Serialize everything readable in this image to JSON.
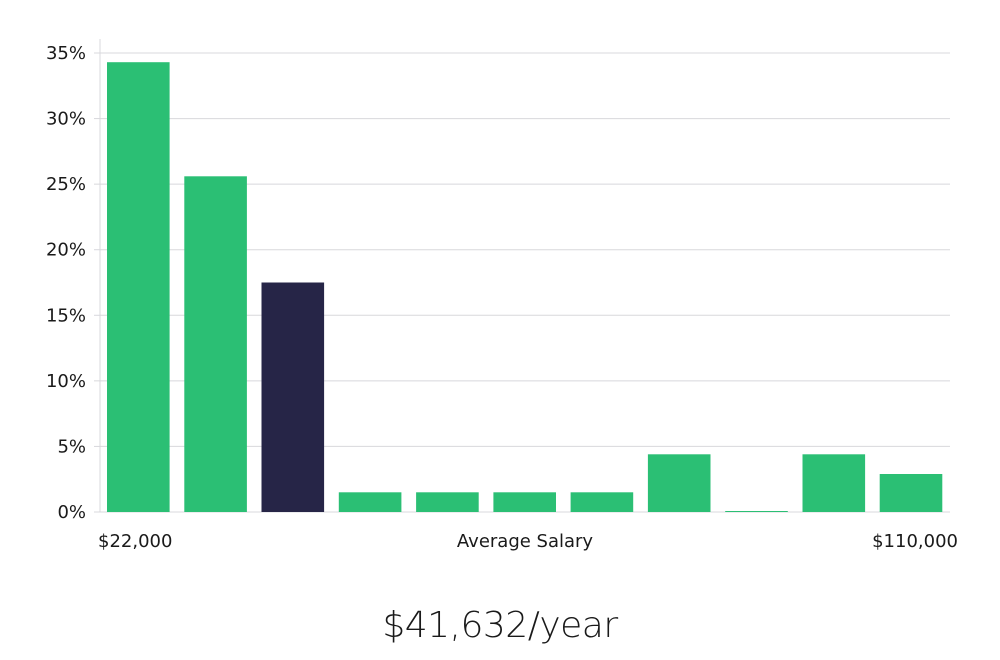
{
  "chart_data": {
    "type": "bar",
    "categories": [
      "1",
      "2",
      "3",
      "4",
      "5",
      "6",
      "7",
      "8",
      "9",
      "10",
      "11"
    ],
    "values": [
      34.3,
      25.6,
      17.5,
      1.5,
      1.5,
      1.5,
      1.5,
      4.4,
      0.05,
      4.4,
      2.9
    ],
    "highlight_index": 2,
    "ylim": [
      0,
      35
    ],
    "yticks": [
      0,
      5,
      10,
      15,
      20,
      25,
      30,
      35
    ],
    "ytick_labels": [
      "0%",
      "5%",
      "10%",
      "15%",
      "20%",
      "25%",
      "30%",
      "35%"
    ],
    "x_min_label": "$22,000",
    "x_max_label": "$110,000",
    "xlabel": "Average Salary",
    "grid": true,
    "colors": {
      "bar": "#2bbf74",
      "highlight": "#262547"
    }
  },
  "summary": {
    "salary": "$41,632/year"
  }
}
